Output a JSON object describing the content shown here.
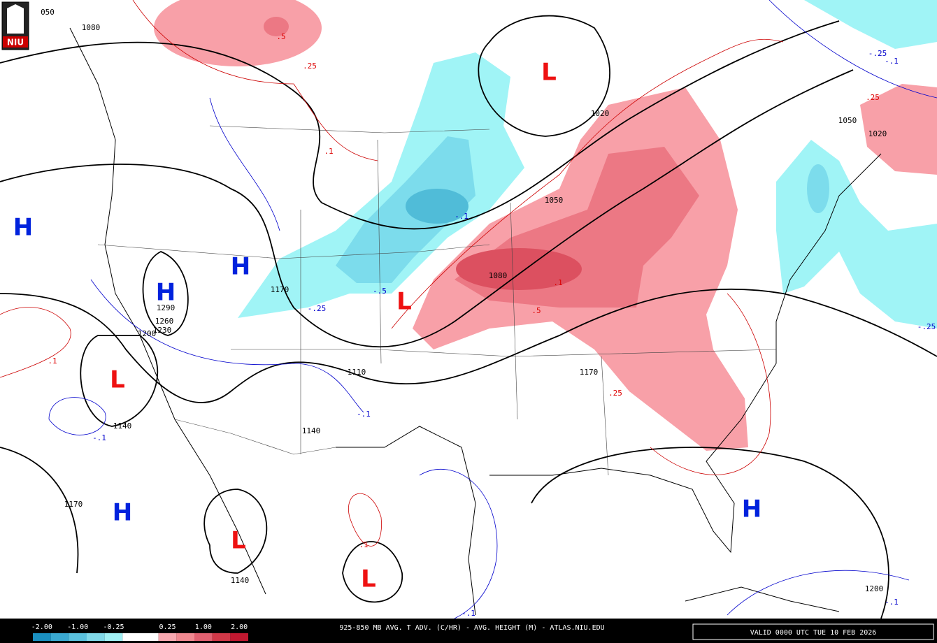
{
  "logo": "NIU",
  "title": "925-850 MB AVG. T ADV. (C/HR) - AVG. HEIGHT (M) - ATLAS.NIU.EDU",
  "valid_time": "VALID 0000 UTC TUE 10 FEB 2026",
  "legend": {
    "labels": [
      "-2.00",
      "-1.00",
      "-0.25",
      "0.25",
      "1.00",
      "2.00"
    ],
    "colors": [
      "#1a8fc0",
      "#3aa8d0",
      "#5ac0dc",
      "#80d8e8",
      "#a0f0f4",
      "#ffffff",
      "#ffffff",
      "#f8a8b0",
      "#f08890",
      "#e06070",
      "#d03848",
      "#c01830"
    ]
  },
  "centers": [
    "H",
    "H",
    "H",
    "H",
    "H",
    "L",
    "L",
    "L",
    "L",
    "L"
  ],
  "center_colors": {
    "H": "#0022dd",
    "L": "#ee1111"
  },
  "height_labels": [
    "050",
    "1080",
    "1020",
    "1050",
    "1020",
    "1050",
    "1080",
    "1170",
    "1290",
    "1260",
    "1230",
    "1200",
    "1110",
    "1170",
    "1140",
    "1140",
    "1170",
    "1140",
    "1200"
  ],
  "warm_advection_labels": [
    ".5",
    ".25",
    ".1",
    ".1",
    ".1",
    ".5",
    ".25",
    ".25",
    ".1"
  ],
  "cold_advection_labels": [
    "-.1",
    "-.5",
    "-.25",
    "-.1",
    "-.1",
    "-.25",
    "-.1",
    "-.25",
    "-.1",
    "-.1"
  ]
}
